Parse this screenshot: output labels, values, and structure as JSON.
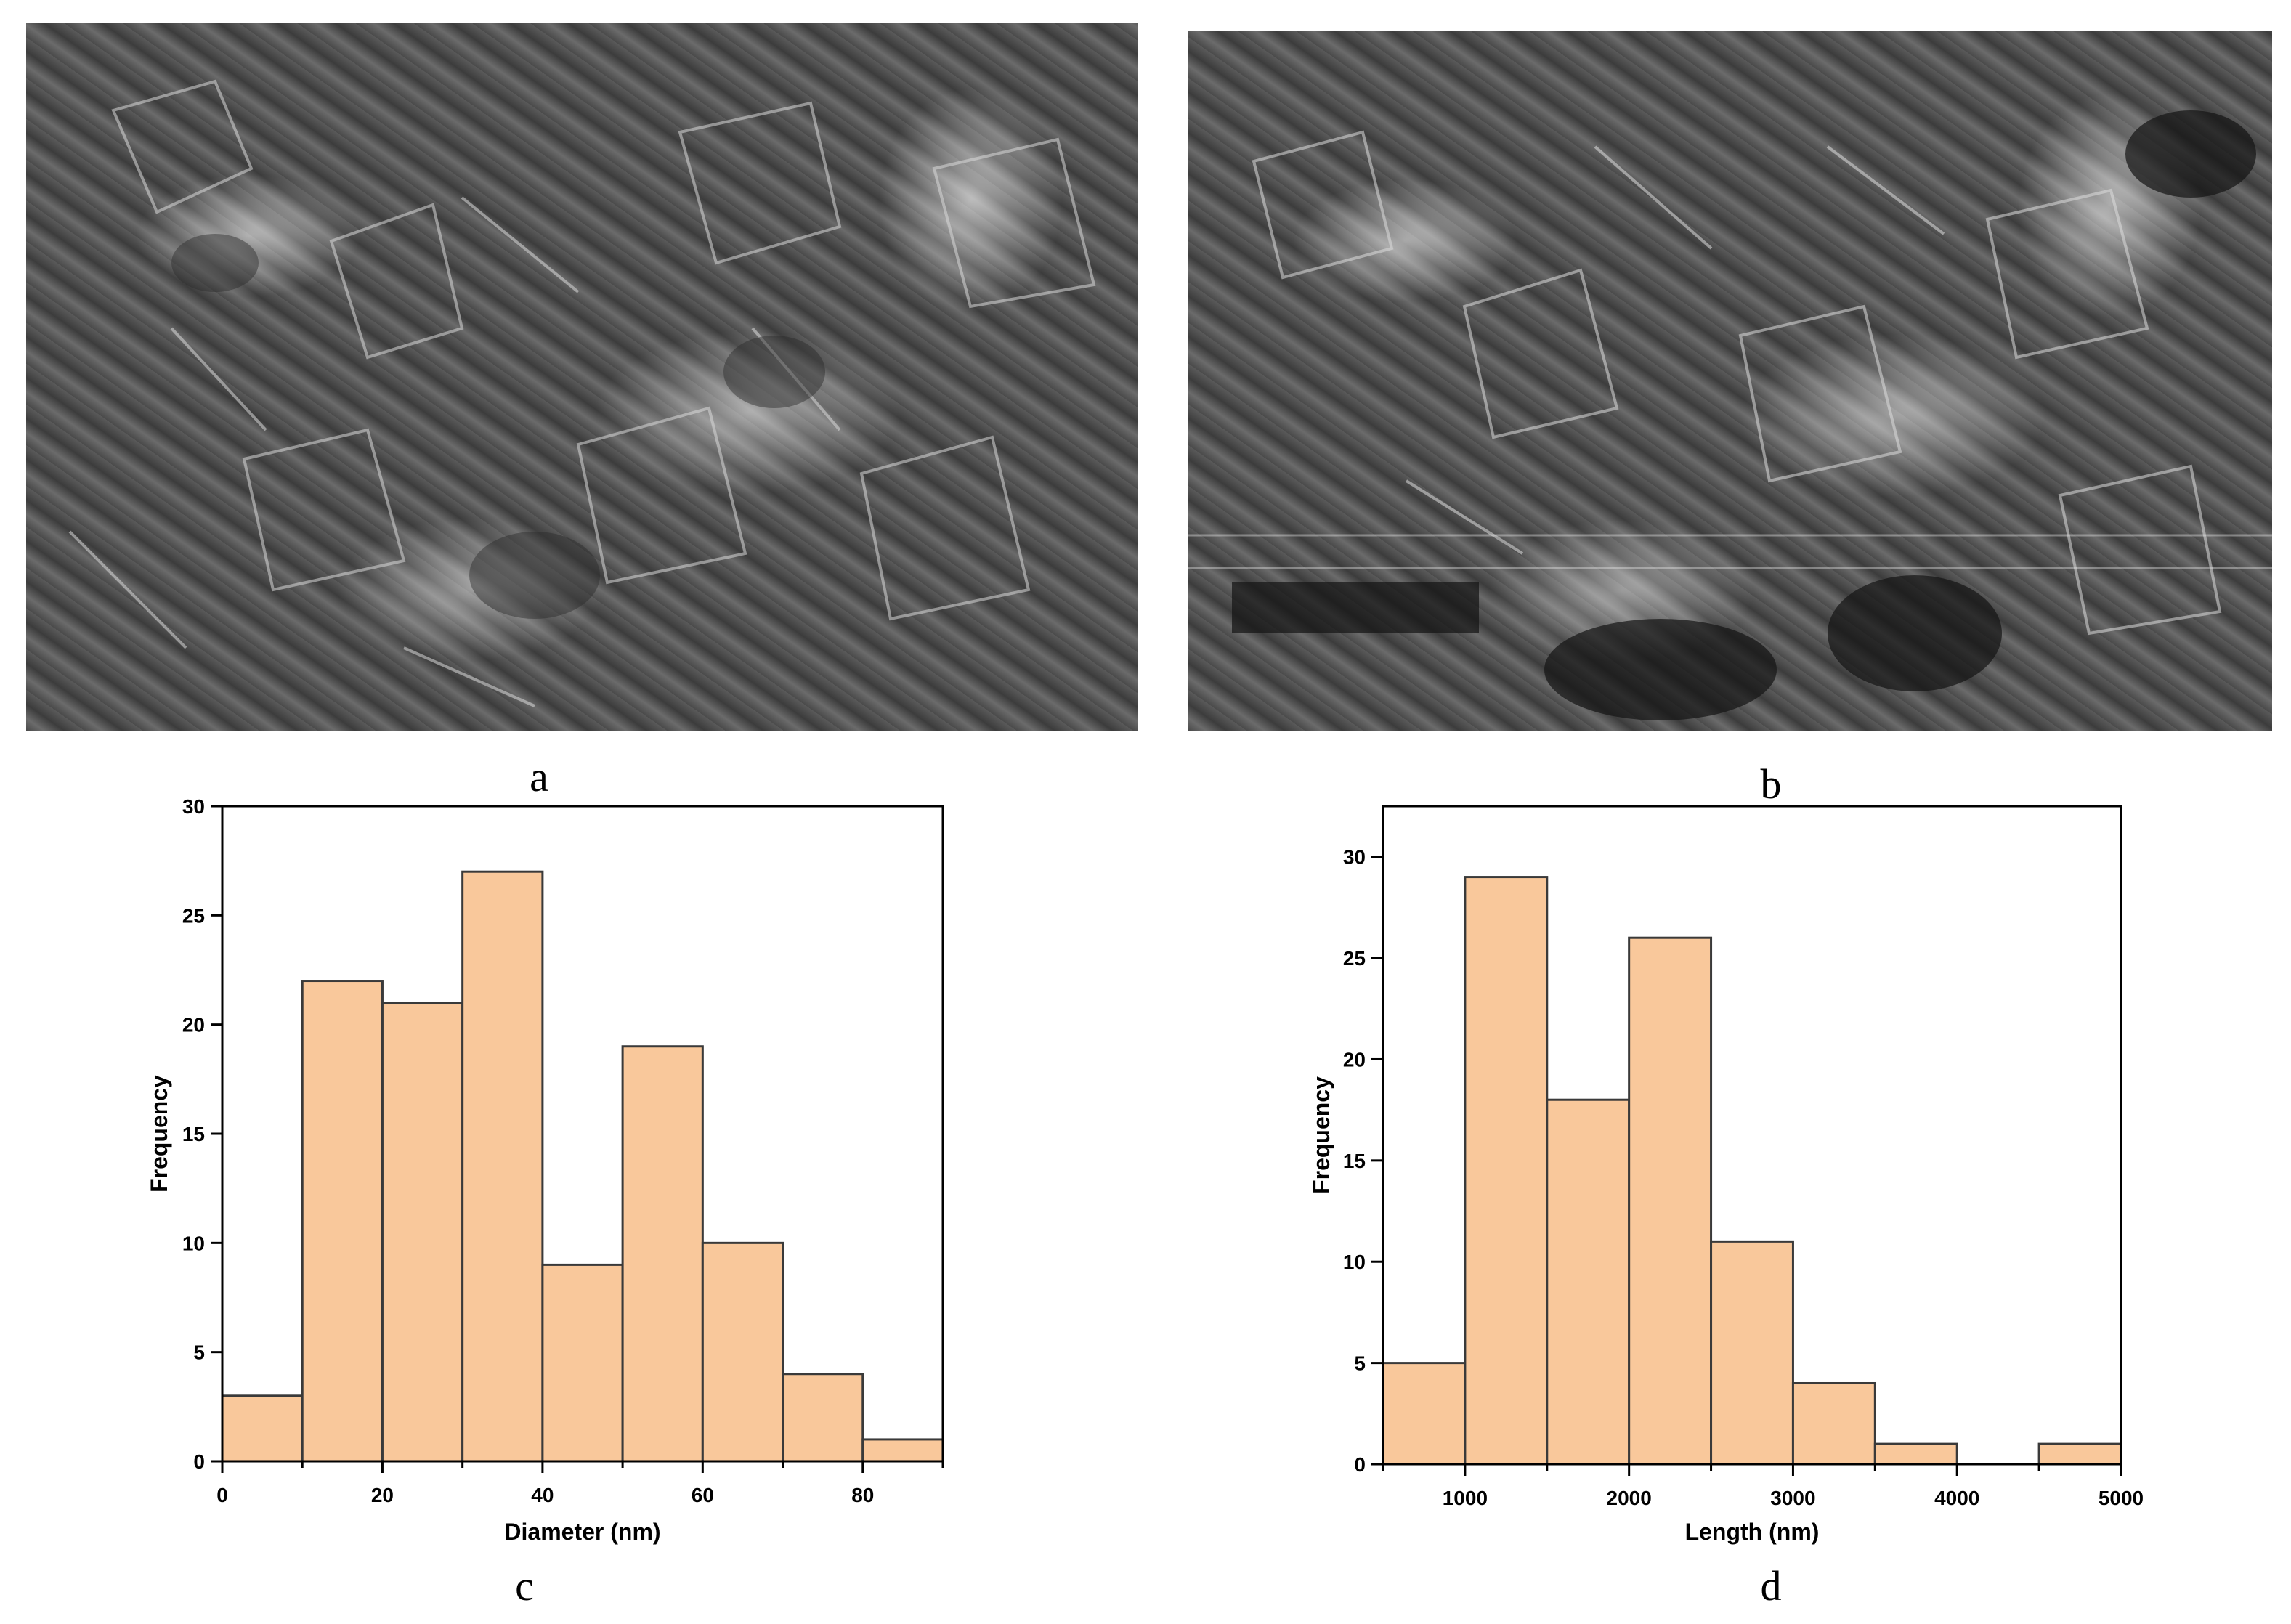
{
  "panels": {
    "a": "a",
    "b": "b",
    "c": "c",
    "d": "d"
  },
  "colors": {
    "bar_fill": "#f9c89b",
    "bar_stroke": "#3a3a3a",
    "axis": "#000000"
  },
  "chart_data": [
    {
      "type": "bar",
      "panel": "c",
      "xlabel": "Diameter (nm)",
      "ylabel": "Frequency",
      "bin_edges": [
        0,
        10,
        20,
        30,
        40,
        50,
        60,
        70,
        80,
        90
      ],
      "values": [
        3,
        22,
        21,
        27,
        9,
        19,
        10,
        4,
        1
      ],
      "xlim": [
        0,
        90
      ],
      "ylim": [
        0,
        30
      ],
      "xticks": [
        0,
        20,
        40,
        60,
        80
      ],
      "yticks": [
        0,
        5,
        10,
        15,
        20,
        25,
        30
      ],
      "grid": false
    },
    {
      "type": "bar",
      "panel": "d",
      "xlabel": "Length (nm)",
      "ylabel": "Frequency",
      "bin_edges": [
        500,
        1000,
        1500,
        2000,
        2500,
        3000,
        3500,
        4000,
        4500,
        5000
      ],
      "values": [
        5,
        29,
        18,
        26,
        11,
        4,
        1,
        0,
        1
      ],
      "xlim": [
        500,
        5000
      ],
      "ylim": [
        0,
        32.5
      ],
      "xticks": [
        1000,
        2000,
        3000,
        4000,
        5000
      ],
      "yticks": [
        0,
        5,
        10,
        15,
        20,
        25,
        30
      ],
      "grid": false
    }
  ]
}
